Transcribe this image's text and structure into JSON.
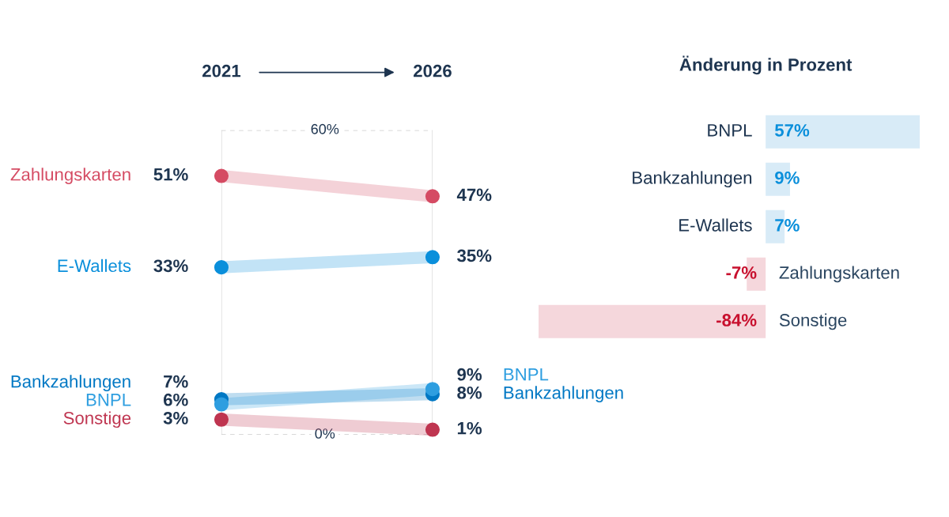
{
  "chart_data": [
    {
      "type": "line",
      "categories": [
        "2021",
        "2026"
      ],
      "ylim": [
        0,
        60
      ],
      "yticks": [
        {
          "value": 0,
          "label": "0%"
        },
        {
          "value": 60,
          "label": "60%"
        }
      ],
      "grid": true,
      "marker": "circle",
      "line_style": "solid",
      "data_labels": true,
      "series": [
        {
          "name": "Zahlungskarten",
          "color": "#d54b63",
          "values": [
            51,
            47
          ],
          "value_labels": [
            "51%",
            "47%"
          ]
        },
        {
          "name": "E-Wallets",
          "color": "#0a8fdb",
          "values": [
            33,
            35
          ],
          "value_labels": [
            "33%",
            "35%"
          ]
        },
        {
          "name": "Bankzahlungen",
          "color": "#0078c4",
          "values": [
            7,
            8
          ],
          "value_labels": [
            "7%",
            "8%"
          ]
        },
        {
          "name": "BNPL",
          "color": "#2e9ee0",
          "values": [
            6,
            9
          ],
          "value_labels": [
            "6%",
            "9%"
          ]
        },
        {
          "name": "Sonstige",
          "color": "#bf3550",
          "values": [
            3,
            1
          ],
          "value_labels": [
            "3%",
            "1%"
          ]
        }
      ]
    },
    {
      "type": "bar",
      "orientation": "horizontal",
      "title": "Änderung in Prozent",
      "categories": [
        "BNPL",
        "Bankzahlungen",
        "E-Wallets",
        "Zahlungskarten",
        "Sonstige"
      ],
      "values": [
        57,
        9,
        7,
        -7,
        -84
      ],
      "colors": [
        "#d8ebf7",
        "#d8ebf7",
        "#d8ebf7",
        "#f5d7dc",
        "#f5d7dc"
      ],
      "value_labels": [
        "57%",
        "9%",
        "7%",
        "-7%",
        "-84%"
      ]
    }
  ]
}
